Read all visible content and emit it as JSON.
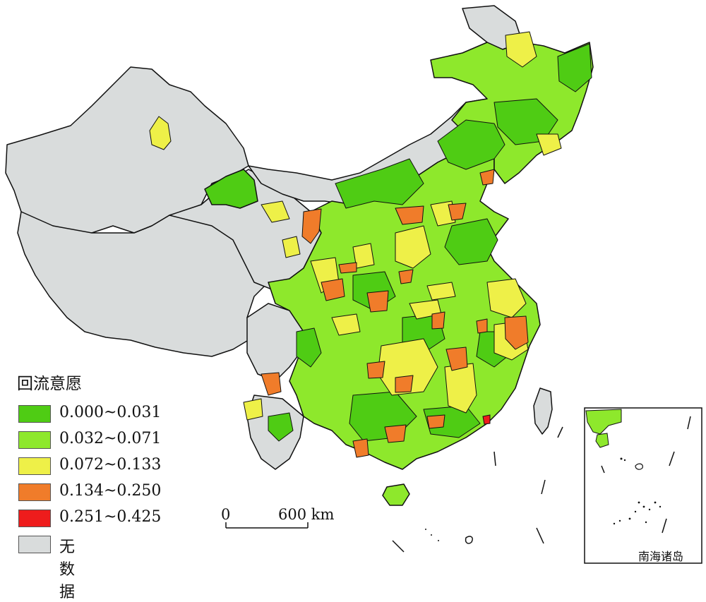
{
  "colors": {
    "class1": "#4fcc14",
    "class2": "#8ee82c",
    "class3": "#eef048",
    "class4": "#f07c2a",
    "class5": "#ee1c1c",
    "nodata": "#d9dcdc",
    "border": "#111111"
  },
  "legend": {
    "title": "回流意愿",
    "items": [
      {
        "label": "0.000~0.031",
        "color": "#4fcc14"
      },
      {
        "label": "0.032~0.071",
        "color": "#8ee82c"
      },
      {
        "label": "0.072~0.133",
        "color": "#eef048"
      },
      {
        "label": "0.134~0.250",
        "color": "#f07c2a"
      },
      {
        "label": "0.251~0.425",
        "color": "#ee1c1c"
      },
      {
        "label": "无数据",
        "color": "#d9dcdc"
      }
    ]
  },
  "scale_bar": {
    "start_label": "0",
    "end_label": "600 km"
  },
  "inset": {
    "label": "南海诸岛"
  }
}
